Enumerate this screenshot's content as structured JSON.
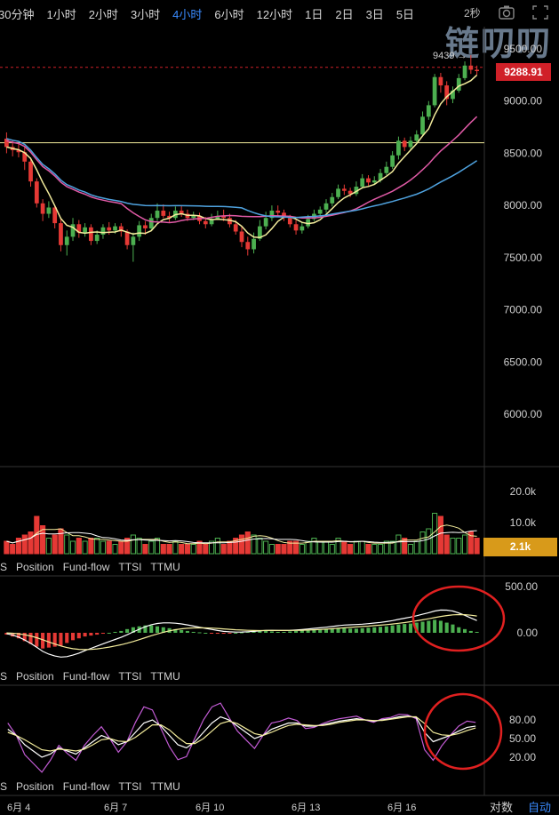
{
  "toolbar": {
    "tabs": [
      {
        "label": "30分钟",
        "active": false
      },
      {
        "label": "1小时",
        "active": false
      },
      {
        "label": "2小时",
        "active": false
      },
      {
        "label": "3小时",
        "active": false
      },
      {
        "label": "4小时",
        "active": true
      },
      {
        "label": "6小时",
        "active": false
      },
      {
        "label": "12小时",
        "active": false
      },
      {
        "label": "1日",
        "active": false
      },
      {
        "label": "2日",
        "active": false
      },
      {
        "label": "3日",
        "active": false
      },
      {
        "label": "5日",
        "active": false
      }
    ],
    "interval_label": "2秒",
    "icons": [
      "camera-icon",
      "fullscreen-icon"
    ]
  },
  "watermark": "链叨叨",
  "price_axis": {
    "ticks": [
      "9500.00",
      "9000.00",
      "8500.00",
      "8000.00",
      "7500.00",
      "7000.00",
      "6500.00",
      "6000.00"
    ],
    "high_marker": "9439 →",
    "current_price": "9288.91",
    "current_price_color": "#d02028"
  },
  "volume_axis": {
    "ticks": [
      "20.0k",
      "10.0k"
    ],
    "current_volume": "2.1k"
  },
  "macd_axis": {
    "ticks": [
      "500.00",
      "0.00"
    ]
  },
  "kdj_axis": {
    "ticks": [
      "80.00",
      "50.00",
      "20.00"
    ]
  },
  "indicator_tabs": [
    "S",
    "Position",
    "Fund-flow",
    "TTSI",
    "TTMU"
  ],
  "x_axis": {
    "dates": [
      "6月 4",
      "6月 7",
      "6月 10",
      "6月 13",
      "6月 16"
    ]
  },
  "bottom_buttons": {
    "log_scale": "对数",
    "auto": "自动"
  },
  "colors": {
    "up": "#4caf50",
    "down": "#e53935",
    "ma_fast": "#f3ec9c",
    "ma_mid": "#e05aa6",
    "ma_slow": "#4fa3e0",
    "highlight_ring": "#e02020",
    "accent": "#3a8bff"
  },
  "chart_data": {
    "type": "line",
    "title": "",
    "ylim": [
      5800,
      9700
    ],
    "candles": [
      [
        8640,
        8560,
        8700,
        8500
      ],
      [
        8560,
        8530,
        8620,
        8470
      ],
      [
        8530,
        8510,
        8590,
        8460
      ],
      [
        8510,
        8420,
        8560,
        8340
      ],
      [
        8420,
        8230,
        8460,
        8180
      ],
      [
        8230,
        8020,
        8260,
        7980
      ],
      [
        8020,
        7920,
        8060,
        7850
      ],
      [
        7920,
        7980,
        8040,
        7880
      ],
      [
        7980,
        7830,
        8000,
        7780
      ],
      [
        7830,
        7620,
        7870,
        7560
      ],
      [
        7620,
        7700,
        7760,
        7520
      ],
      [
        7700,
        7820,
        7880,
        7660
      ],
      [
        7820,
        7740,
        7860,
        7690
      ],
      [
        7740,
        7790,
        7830,
        7700
      ],
      [
        7790,
        7660,
        7820,
        7620
      ],
      [
        7660,
        7720,
        7760,
        7630
      ],
      [
        7720,
        7790,
        7820,
        7680
      ],
      [
        7790,
        7760,
        7840,
        7720
      ],
      [
        7760,
        7800,
        7830,
        7730
      ],
      [
        7800,
        7750,
        7830,
        7700
      ],
      [
        7750,
        7620,
        7770,
        7580
      ],
      [
        7620,
        7700,
        7740,
        7460
      ],
      [
        7700,
        7810,
        7850,
        7660
      ],
      [
        7810,
        7780,
        7850,
        7720
      ],
      [
        7780,
        7880,
        7920,
        7760
      ],
      [
        7880,
        7950,
        8020,
        7850
      ],
      [
        7950,
        7900,
        8010,
        7880
      ],
      [
        7900,
        7880,
        7940,
        7840
      ],
      [
        7880,
        7950,
        7990,
        7860
      ],
      [
        7950,
        7920,
        8000,
        7890
      ],
      [
        7920,
        7880,
        7960,
        7850
      ],
      [
        7880,
        7900,
        7940,
        7860
      ],
      [
        7900,
        7850,
        7930,
        7820
      ],
      [
        7850,
        7820,
        7890,
        7780
      ],
      [
        7820,
        7870,
        7920,
        7800
      ],
      [
        7870,
        7900,
        7950,
        7860
      ],
      [
        7900,
        7880,
        7960,
        7850
      ],
      [
        7880,
        7820,
        7920,
        7790
      ],
      [
        7820,
        7750,
        7860,
        7720
      ],
      [
        7750,
        7650,
        7800,
        7600
      ],
      [
        7650,
        7580,
        7700,
        7520
      ],
      [
        7580,
        7680,
        7740,
        7540
      ],
      [
        7680,
        7800,
        7860,
        7660
      ],
      [
        7800,
        7880,
        7940,
        7770
      ],
      [
        7880,
        7950,
        8000,
        7850
      ],
      [
        7950,
        7930,
        8000,
        7900
      ],
      [
        7930,
        7880,
        7960,
        7850
      ],
      [
        7880,
        7820,
        7910,
        7790
      ],
      [
        7820,
        7760,
        7860,
        7720
      ],
      [
        7760,
        7800,
        7840,
        7730
      ],
      [
        7800,
        7870,
        7910,
        7780
      ],
      [
        7870,
        7920,
        7960,
        7850
      ],
      [
        7920,
        7960,
        7990,
        7880
      ],
      [
        7960,
        8020,
        8060,
        7930
      ],
      [
        8020,
        8080,
        8120,
        7990
      ],
      [
        8080,
        8160,
        8200,
        8060
      ],
      [
        8160,
        8140,
        8200,
        8100
      ],
      [
        8140,
        8110,
        8170,
        8080
      ],
      [
        8110,
        8180,
        8230,
        8090
      ],
      [
        8180,
        8260,
        8300,
        8160
      ],
      [
        8260,
        8220,
        8290,
        8190
      ],
      [
        8220,
        8240,
        8280,
        8200
      ],
      [
        8240,
        8310,
        8350,
        8220
      ],
      [
        8310,
        8370,
        8420,
        8290
      ],
      [
        8370,
        8480,
        8520,
        8350
      ],
      [
        8480,
        8620,
        8660,
        8440
      ],
      [
        8620,
        8560,
        8650,
        8520
      ],
      [
        8560,
        8620,
        8660,
        8540
      ],
      [
        8620,
        8680,
        8720,
        8600
      ],
      [
        8680,
        8850,
        8900,
        8660
      ],
      [
        8850,
        8960,
        9000,
        8820
      ],
      [
        8960,
        9230,
        9260,
        8940
      ],
      [
        9230,
        9150,
        9270,
        9080
      ],
      [
        9150,
        9020,
        9190,
        8960
      ],
      [
        9020,
        9100,
        9140,
        8980
      ],
      [
        9100,
        9220,
        9260,
        9080
      ],
      [
        9220,
        9340,
        9380,
        9200
      ],
      [
        9340,
        9300,
        9439,
        9260
      ],
      [
        9300,
        9290,
        9340,
        9250
      ]
    ],
    "series": [
      {
        "name": "",
        "color_key": "ma_fast"
      },
      {
        "name": "",
        "color_key": "ma_mid"
      },
      {
        "name": "",
        "color_key": "ma_slow"
      }
    ],
    "horizontal_line": 8600,
    "volume": [
      4,
      3,
      5,
      6,
      7,
      12,
      9,
      5,
      6,
      8,
      6,
      4,
      5,
      4,
      5,
      5,
      4,
      4,
      3,
      4,
      5,
      6,
      5,
      3,
      4,
      5,
      3,
      3,
      4,
      3,
      3,
      3,
      4,
      3,
      4,
      5,
      3,
      4,
      5,
      6,
      7,
      6,
      5,
      4,
      3,
      3,
      3,
      4,
      4,
      3,
      4,
      5,
      4,
      4,
      3,
      5,
      4,
      3,
      4,
      4,
      3,
      3,
      3,
      4,
      4,
      6,
      5,
      3,
      4,
      7,
      8,
      13,
      12,
      6,
      5,
      5,
      6,
      7,
      5
    ],
    "macd_hist": [
      -20,
      -40,
      -60,
      -90,
      -120,
      -150,
      -170,
      -160,
      -150,
      -140,
      -110,
      -80,
      -60,
      -40,
      -30,
      -20,
      -10,
      0,
      10,
      20,
      40,
      60,
      70,
      80,
      80,
      70,
      60,
      50,
      40,
      30,
      20,
      10,
      5,
      0,
      -5,
      -10,
      -10,
      -5,
      0,
      5,
      10,
      15,
      20,
      20,
      15,
      10,
      10,
      15,
      20,
      25,
      30,
      35,
      35,
      40,
      45,
      50,
      50,
      45,
      45,
      50,
      55,
      60,
      65,
      70,
      80,
      90,
      95,
      100,
      110,
      120,
      130,
      140,
      130,
      110,
      90,
      60,
      40,
      20,
      10
    ],
    "kdj_k": [
      65,
      55,
      40,
      30,
      20,
      25,
      35,
      30,
      25,
      35,
      45,
      55,
      50,
      40,
      45,
      60,
      75,
      80,
      70,
      55,
      40,
      35,
      45,
      60,
      75,
      85,
      80,
      70,
      60,
      50,
      55,
      65,
      70,
      75,
      75,
      70,
      70,
      72,
      75,
      78,
      80,
      82,
      80,
      78,
      80,
      82,
      85,
      86,
      84,
      60,
      45,
      50,
      55,
      62,
      68,
      70
    ],
    "kdj_d": [
      60,
      55,
      48,
      40,
      32,
      30,
      33,
      32,
      30,
      33,
      40,
      48,
      50,
      46,
      45,
      52,
      62,
      72,
      72,
      64,
      52,
      42,
      42,
      50,
      62,
      74,
      78,
      74,
      66,
      58,
      55,
      60,
      66,
      71,
      73,
      72,
      71,
      71,
      73,
      76,
      78,
      80,
      80,
      79,
      79,
      81,
      83,
      85,
      85,
      74,
      60,
      56,
      55,
      58,
      63,
      67
    ]
  }
}
